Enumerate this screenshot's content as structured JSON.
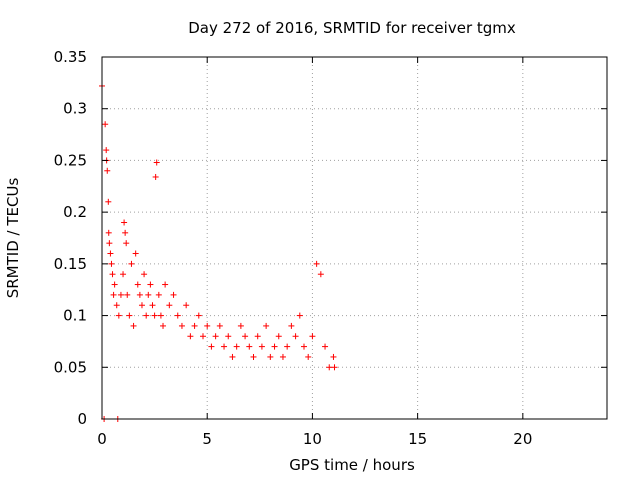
{
  "chart_data": {
    "type": "scatter",
    "title": "Day 272 of 2016, SRMTID for receiver tgmx",
    "xlabel": "GPS time / hours",
    "ylabel": "SRMTID / TECUs",
    "xlim": [
      0,
      24
    ],
    "ylim": [
      0,
      0.35
    ],
    "xticks": [
      0,
      5,
      10,
      15,
      20
    ],
    "xtick_labels": [
      "0",
      "5",
      "10",
      "15",
      "20"
    ],
    "yticks": [
      0,
      0.05,
      0.1,
      0.15,
      0.2,
      0.25,
      0.3,
      0.35
    ],
    "ytick_labels": [
      "0",
      "0.05",
      "0.1",
      "0.15",
      "0.2",
      "0.25",
      "0.3",
      "0.35"
    ],
    "grid": true,
    "marker": "+",
    "color": "#ff0000",
    "series": [
      {
        "name": "SRMTID",
        "x": [
          0.0,
          0.15,
          0.2,
          0.22,
          0.25,
          0.3,
          0.32,
          0.35,
          0.4,
          0.45,
          0.5,
          0.55,
          0.6,
          0.7,
          0.8,
          0.9,
          1.0,
          1.05,
          1.1,
          1.15,
          1.2,
          1.3,
          1.4,
          1.5,
          1.6,
          1.7,
          1.8,
          1.9,
          2.0,
          2.1,
          2.2,
          2.3,
          2.4,
          2.5,
          2.55,
          2.6,
          2.7,
          2.8,
          2.9,
          3.0,
          3.2,
          3.4,
          3.6,
          3.8,
          4.0,
          4.2,
          4.4,
          4.6,
          4.8,
          5.0,
          5.2,
          5.4,
          5.6,
          5.8,
          6.0,
          6.2,
          6.4,
          6.6,
          6.8,
          7.0,
          7.2,
          7.4,
          7.6,
          7.8,
          8.0,
          8.2,
          8.4,
          8.6,
          8.8,
          9.0,
          9.2,
          9.4,
          9.6,
          9.8,
          10.0,
          10.2,
          10.4,
          10.6,
          10.8,
          11.0,
          11.05,
          0.1,
          0.75
        ],
        "y": [
          0.322,
          0.285,
          0.26,
          0.25,
          0.24,
          0.21,
          0.18,
          0.17,
          0.16,
          0.15,
          0.14,
          0.12,
          0.13,
          0.11,
          0.1,
          0.12,
          0.14,
          0.19,
          0.18,
          0.17,
          0.12,
          0.1,
          0.15,
          0.09,
          0.16,
          0.13,
          0.12,
          0.11,
          0.14,
          0.1,
          0.12,
          0.13,
          0.11,
          0.1,
          0.234,
          0.248,
          0.12,
          0.1,
          0.09,
          0.13,
          0.11,
          0.12,
          0.1,
          0.09,
          0.11,
          0.08,
          0.09,
          0.1,
          0.08,
          0.09,
          0.07,
          0.08,
          0.09,
          0.07,
          0.08,
          0.06,
          0.07,
          0.09,
          0.08,
          0.07,
          0.06,
          0.08,
          0.07,
          0.09,
          0.06,
          0.07,
          0.08,
          0.06,
          0.07,
          0.09,
          0.08,
          0.1,
          0.07,
          0.06,
          0.08,
          0.15,
          0.14,
          0.07,
          0.05,
          0.06,
          0.05,
          0.0,
          0.0
        ]
      }
    ]
  }
}
